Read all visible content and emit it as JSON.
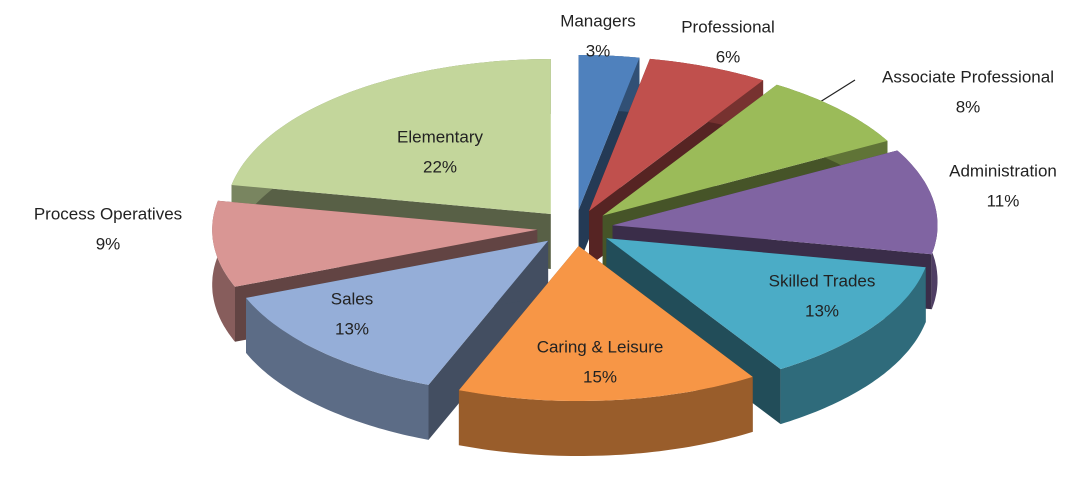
{
  "chart_data": {
    "type": "pie3d",
    "categories": [
      "Managers",
      "Professional",
      "Associate Professional",
      "Administration",
      "Skilled Trades",
      "Caring & Leisure",
      "Sales",
      "Process Operatives",
      "Elementary"
    ],
    "values": [
      3,
      6,
      8,
      11,
      13,
      15,
      13,
      9,
      22
    ],
    "value_labels": [
      "3%",
      "6%",
      "8%",
      "11%",
      "13%",
      "15%",
      "13%",
      "9%",
      "22%"
    ],
    "colors": [
      "#4f81bd",
      "#c0504d",
      "#9bbb59",
      "#8064a2",
      "#4bacc6",
      "#f79646",
      "#95aed8",
      "#d99694",
      "#c3d69b"
    ]
  }
}
